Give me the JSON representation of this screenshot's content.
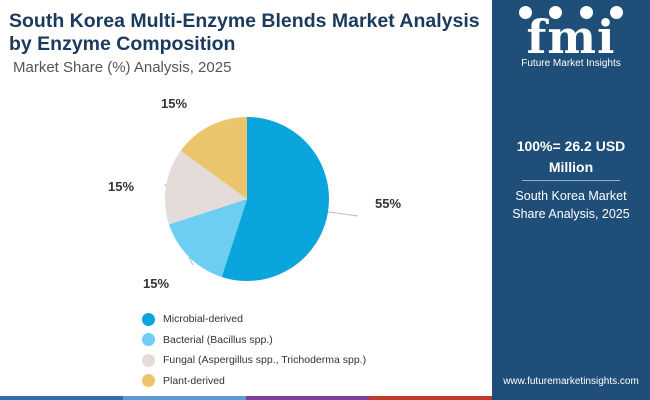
{
  "title": "South Korea Multi-Enzyme Blends Market Analysis by Enzyme Composition",
  "subtitle": "Market Share (%) Analysis, 2025",
  "chart_data": {
    "type": "pie",
    "title": "South Korea Multi-Enzyme Blends Market Analysis by Enzyme Composition",
    "subtitle": "Market Share (%) Analysis, 2025",
    "categories": [
      "Microbial-derived",
      "Bacterial (Bacillus spp.)",
      "Fungal (Aspergillus spp., Trichoderma spp.)",
      "Plant-derived"
    ],
    "values": [
      55,
      15,
      15,
      15
    ],
    "labels": [
      "55%",
      "15%",
      "15%",
      "15%"
    ],
    "colors": [
      "#0aa5dd",
      "#6dcdf2",
      "#e3dcd8",
      "#ebc56b"
    ],
    "legend_position": "bottom-left"
  },
  "sidebar": {
    "logo_text": "fmi",
    "logo_tagline": "Future Market Insights",
    "total_value": "100%= 26.2 USD Million",
    "caption": "South Korea Market Share Analysis, 2025",
    "website": "www.futuremarketinsights.com"
  },
  "bottom_bar_colors": [
    "#2f6fb0",
    "#5b9bd5",
    "#7f3f98",
    "#c0392b"
  ]
}
